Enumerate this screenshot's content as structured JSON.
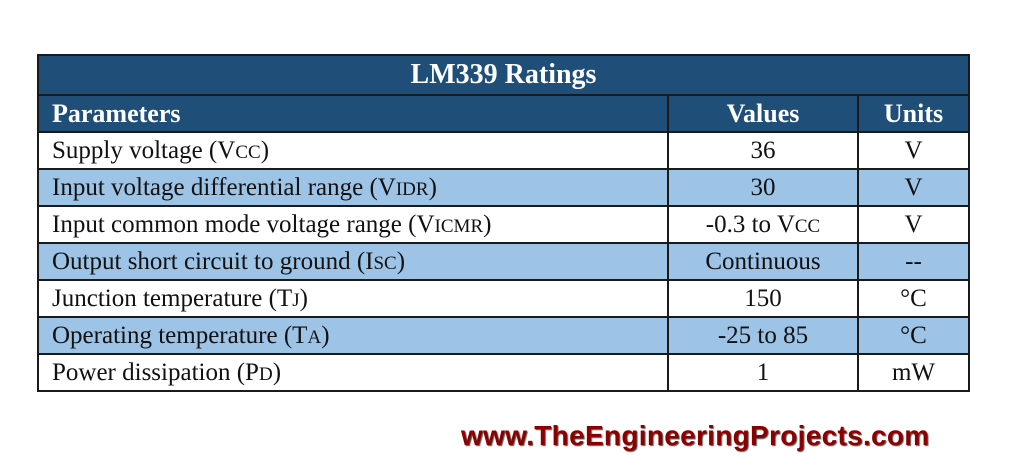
{
  "table": {
    "title": "LM339 Ratings",
    "headers": {
      "parameter": "Parameters",
      "value": "Values",
      "unit": "Units"
    },
    "rows": [
      {
        "param": "Supply voltage (",
        "sym": "V",
        "sub": "CC",
        "close": ")",
        "value": "36",
        "value_suffix": "",
        "value_sub": "",
        "unit": "V"
      },
      {
        "param": "Input voltage differential range (",
        "sym": "V",
        "sub": "IDR",
        "close": ")",
        "value": "30",
        "value_suffix": "",
        "value_sub": "",
        "unit": "V"
      },
      {
        "param": "Input common mode voltage range (",
        "sym": "V",
        "sub": "ICMR",
        "close": ")",
        "value": "-0.3 to V",
        "value_suffix": "",
        "value_sub": "CC",
        "unit": "V"
      },
      {
        "param": "Output short circuit to ground (",
        "sym": "I",
        "sub": "SC",
        "close": ")",
        "value": "Continuous",
        "value_suffix": "",
        "value_sub": "",
        "unit": "--"
      },
      {
        "param": "Junction temperature (",
        "sym": "T",
        "sub": "J",
        "close": ")",
        "value": "150",
        "value_suffix": "",
        "value_sub": "",
        "unit": "°C"
      },
      {
        "param": "Operating temperature (",
        "sym": "T",
        "sub": "A",
        "close": ")",
        "value": "-25 to 85",
        "value_suffix": "",
        "value_sub": "",
        "unit": "°C"
      },
      {
        "param": "Power dissipation (",
        "sym": "P",
        "sub": "D",
        "close": ")",
        "value": "1",
        "value_suffix": "",
        "value_sub": "",
        "unit": "mW"
      }
    ]
  },
  "watermark": "www.TheEngineeringProjects.com",
  "colors": {
    "header_bg": "#1f4e79",
    "alt_row_bg": "#9dc3e6",
    "watermark": "#8b0000"
  }
}
